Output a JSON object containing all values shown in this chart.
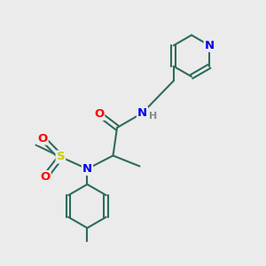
{
  "bg_color": "#ebebeb",
  "bond_color": "#2d6b5e",
  "bond_width": 1.5,
  "atom_colors": {
    "N": "#0000ee",
    "O": "#ff0000",
    "S": "#cccc00",
    "H": "#888888"
  },
  "font_size_atom": 9.5,
  "font_size_h": 8.0
}
